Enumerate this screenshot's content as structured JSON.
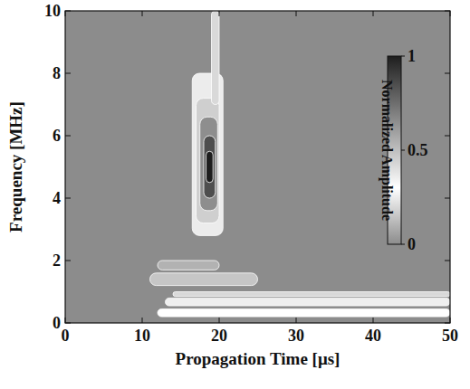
{
  "chart_data": {
    "type": "heatmap",
    "x_label": "Propagation Time [μs]",
    "y_label": "Frequency [MHz]",
    "xlim": [
      0,
      50
    ],
    "xticks": [
      0,
      10,
      20,
      30,
      40,
      50
    ],
    "ylim": [
      0,
      10
    ],
    "yticks": [
      0,
      2,
      4,
      6,
      8,
      10
    ],
    "grid": false,
    "cells": [
      [
        16.5,
        20.5,
        2.8,
        8,
        0.25
      ],
      [
        17,
        20,
        3.2,
        7.2,
        0.45
      ],
      [
        17.5,
        19.8,
        3.6,
        6.6,
        0.65
      ],
      [
        18,
        19.5,
        4,
        6,
        0.85
      ],
      [
        18.3,
        19.2,
        4.5,
        5.5,
        1.0
      ],
      [
        19,
        20,
        7,
        10,
        0.2
      ],
      [
        11,
        25,
        1.2,
        1.6,
        0.15
      ],
      [
        12,
        20,
        1.7,
        2.0,
        0.1
      ],
      [
        12,
        50,
        0.2,
        0.45,
        0.3
      ],
      [
        13,
        50,
        0.55,
        0.8,
        0.35
      ],
      [
        14,
        50,
        0.85,
        1.0,
        0.2
      ]
    ],
    "colorbar": {
      "label": "Normalized Amplitude",
      "range": [
        0,
        1
      ],
      "ticks": [
        0,
        0.5,
        1
      ]
    }
  }
}
